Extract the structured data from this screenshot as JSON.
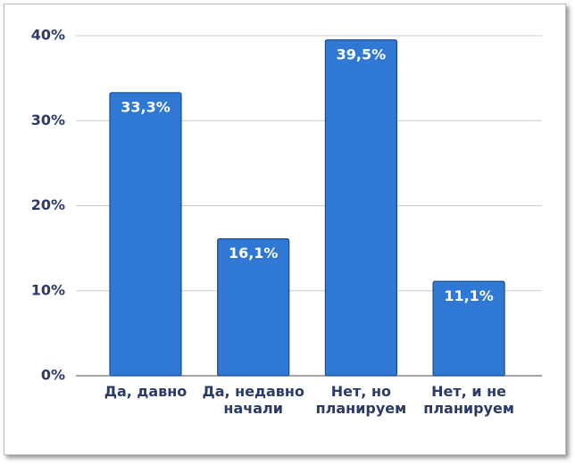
{
  "chart_data": {
    "type": "bar",
    "categories": [
      "Да, давно",
      "Да, недавно начали",
      "Нет, но планируем",
      "Нет, и не планируем"
    ],
    "values": [
      33.3,
      16.1,
      39.5,
      11.1
    ],
    "value_labels": [
      "33,3%",
      "16,1%",
      "39,5%",
      "11,1%"
    ],
    "color": "#2f78d4",
    "ylim": [
      0,
      40
    ],
    "yticks": [
      {
        "value": 0,
        "label": "0%"
      },
      {
        "value": 10,
        "label": "10%"
      },
      {
        "value": 20,
        "label": "20%"
      },
      {
        "value": 30,
        "label": "30%"
      },
      {
        "value": 40,
        "label": "40%"
      }
    ],
    "grid": true
  }
}
